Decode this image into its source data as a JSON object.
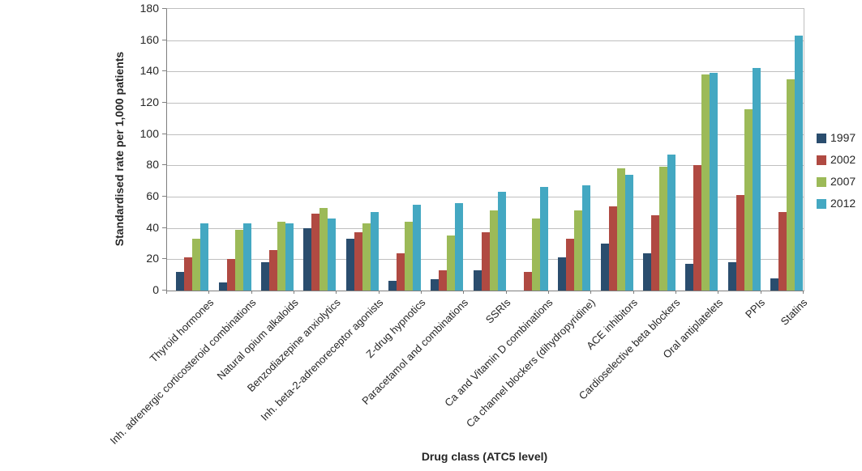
{
  "chart_data": {
    "type": "bar",
    "title": "",
    "xlabel": "Drug class (ATC5 level)",
    "ylabel": "Standardised rate per 1,000 patients",
    "ylim": [
      0,
      180
    ],
    "yticks": [
      0,
      20,
      40,
      60,
      80,
      100,
      120,
      140,
      160,
      180
    ],
    "grid": true,
    "legend_position": "right",
    "axis_color": "#7f7f7f",
    "grid_color": "#bfbfbf",
    "categories": [
      "Thyroid hormones",
      "Inh. adrenergic corticosteroid combinations",
      "Natural opium alkaloids",
      "Benzodiazepine anxiolytics",
      "Inh. beta-2-adrenoreceptor agonists",
      "Z-drug hypnotics",
      "Paracetamol and combinations",
      "SSRIs",
      "Ca and Vitamin D combinations",
      "Ca channel blockers (dihydropyridine)",
      "ACE inhibitors",
      "Cardioselective beta blockers",
      "Oral antiplatelets",
      "PPIs",
      "Statins"
    ],
    "series": [
      {
        "name": "1997",
        "color": "#2a4d6e",
        "values": [
          12,
          5,
          18,
          40,
          33,
          6,
          7,
          13,
          0,
          21,
          30,
          24,
          17,
          18,
          8
        ]
      },
      {
        "name": "2002",
        "color": "#b04a42",
        "values": [
          21,
          20,
          26,
          49,
          37,
          24,
          13,
          37,
          12,
          33,
          54,
          48,
          80,
          61,
          50
        ]
      },
      {
        "name": "2007",
        "color": "#9cba58",
        "values": [
          33,
          39,
          44,
          53,
          43,
          44,
          35,
          51,
          46,
          51,
          78,
          79,
          138,
          116,
          135
        ]
      },
      {
        "name": "2012",
        "color": "#44a8c2",
        "values": [
          43,
          43,
          43,
          46,
          50,
          55,
          56,
          63,
          66,
          67,
          74,
          87,
          139,
          142,
          163
        ]
      }
    ]
  }
}
